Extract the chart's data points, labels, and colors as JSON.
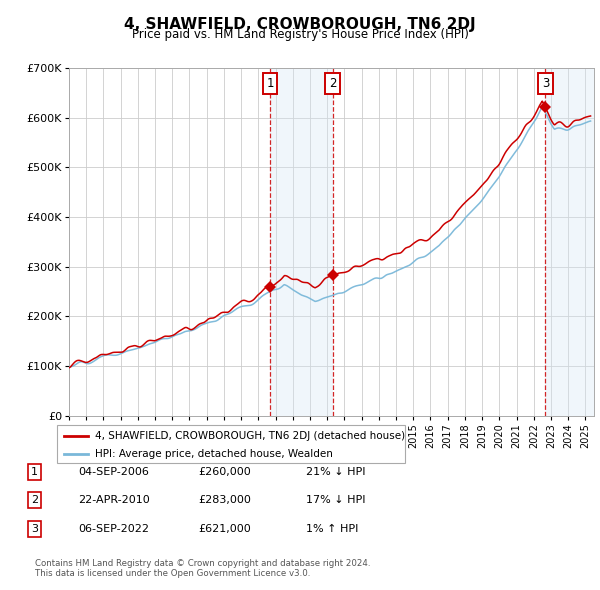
{
  "title": "4, SHAWFIELD, CROWBOROUGH, TN6 2DJ",
  "subtitle": "Price paid vs. HM Land Registry's House Price Index (HPI)",
  "xlim_start": 1995.0,
  "xlim_end": 2025.5,
  "ylim_min": 0,
  "ylim_max": 700000,
  "yticks": [
    0,
    100000,
    200000,
    300000,
    400000,
    500000,
    600000,
    700000
  ],
  "ytick_labels": [
    "£0",
    "£100K",
    "£200K",
    "£300K",
    "£400K",
    "£500K",
    "£600K",
    "£700K"
  ],
  "hpi_color": "#7ab8d9",
  "price_color": "#cc0000",
  "shading_color": "#d6e8f5",
  "grid_color": "#cccccc",
  "background_color": "#ffffff",
  "transactions": [
    {
      "num": 1,
      "date_str": "04-SEP-2006",
      "price": 260000,
      "pct": "21%",
      "direction": "↓",
      "x_year": 2006.68
    },
    {
      "num": 2,
      "date_str": "22-APR-2010",
      "price": 283000,
      "pct": "17%",
      "direction": "↓",
      "x_year": 2010.31
    },
    {
      "num": 3,
      "date_str": "06-SEP-2022",
      "price": 621000,
      "pct": "1%",
      "direction": "↑",
      "x_year": 2022.68
    }
  ],
  "legend_property_label": "4, SHAWFIELD, CROWBOROUGH, TN6 2DJ (detached house)",
  "legend_hpi_label": "HPI: Average price, detached house, Wealden",
  "table_rows": [
    [
      "1",
      "04-SEP-2006",
      "£260,000",
      "21% ↓ HPI"
    ],
    [
      "2",
      "22-APR-2010",
      "£283,000",
      "17% ↓ HPI"
    ],
    [
      "3",
      "06-SEP-2022",
      "£621,000",
      "1% ↑ HPI"
    ]
  ],
  "footer_line1": "Contains HM Land Registry data © Crown copyright and database right 2024.",
  "footer_line2": "This data is licensed under the Open Government Licence v3.0."
}
